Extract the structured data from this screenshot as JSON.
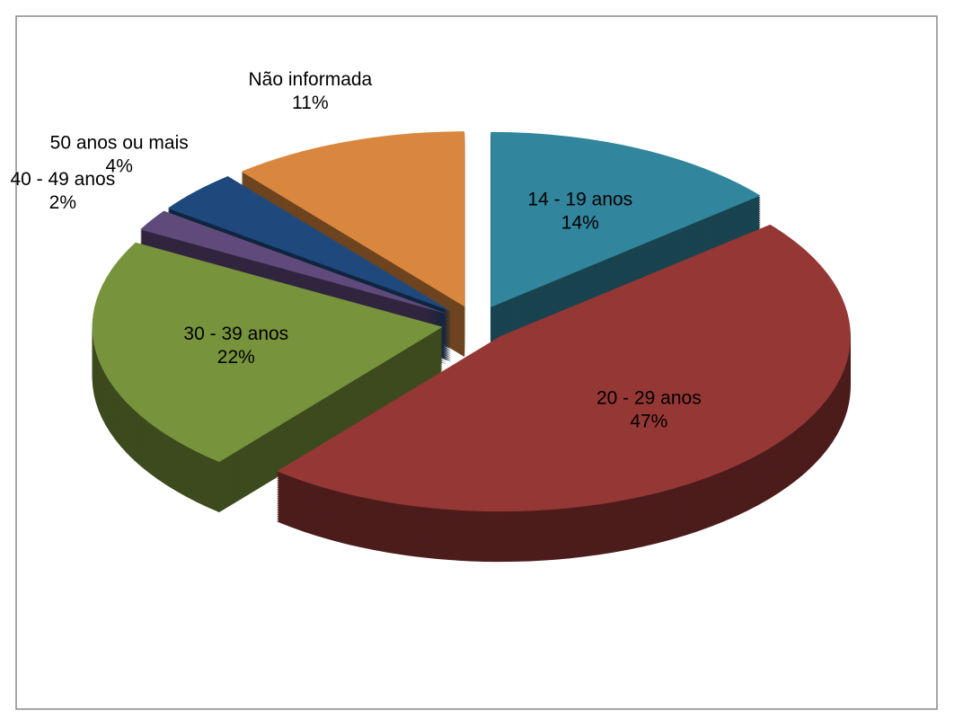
{
  "chart_data": {
    "type": "pie",
    "categories": [
      "14 - 19 anos",
      "20 - 29 anos",
      "30 - 39 anos",
      "40 - 49 anos",
      "50 anos ou mais",
      "Não informada"
    ],
    "values": [
      14,
      47,
      22,
      2,
      4,
      11
    ],
    "value_labels": [
      "14%",
      "47%",
      "22%",
      "2%",
      "4%",
      "11%"
    ],
    "colors": [
      "#31859c",
      "#953735",
      "#77933c",
      "#604a7b",
      "#1f497d",
      "#d9873e"
    ]
  }
}
